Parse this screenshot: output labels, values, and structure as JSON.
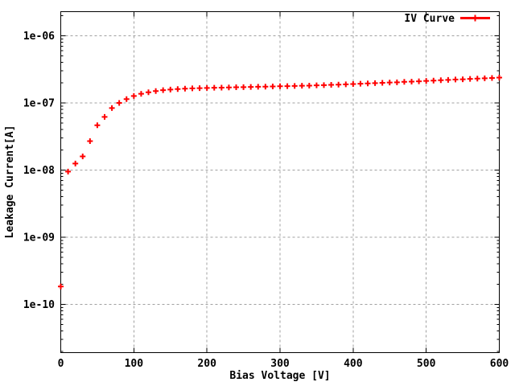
{
  "chart_data": {
    "type": "scatter",
    "title": "",
    "xlabel": "Bias Voltage [V]",
    "ylabel": "Leakage Current[A]",
    "legend_label": "IV Curve",
    "legend_position": "top-right-inside",
    "y_scale": "log",
    "xlim": [
      0,
      600
    ],
    "ylim_approx": [
      2e-11,
      2.2e-06
    ],
    "grid": true,
    "marker": "plus",
    "x_ticks": [
      0,
      100,
      200,
      300,
      400,
      500,
      600
    ],
    "y_tick_labels": [
      "1e-10",
      "1e-09",
      "1e-08",
      "1e-07",
      "1e-06"
    ],
    "colors": {
      "series": "#ff0000",
      "grid": "#a0a0a0",
      "axis": "#000000",
      "text": "#000000",
      "background": "#ffffff"
    },
    "series": [
      {
        "name": "IV Curve",
        "x": [
          0,
          10,
          20,
          30,
          40,
          50,
          60,
          70,
          80,
          90,
          100,
          110,
          120,
          130,
          140,
          150,
          160,
          170,
          180,
          190,
          200,
          210,
          220,
          230,
          240,
          250,
          260,
          270,
          280,
          290,
          300,
          310,
          320,
          330,
          340,
          350,
          360,
          370,
          380,
          390,
          400,
          410,
          420,
          430,
          440,
          450,
          460,
          470,
          480,
          490,
          500,
          510,
          520,
          530,
          540,
          550,
          560,
          570,
          580,
          590,
          600
        ],
        "y": [
          1.85e-10,
          9.5e-09,
          1.25e-08,
          1.6e-08,
          2.7e-08,
          4.65e-08,
          6.2e-08,
          8.4e-08,
          1e-07,
          1.14e-07,
          1.27e-07,
          1.37e-07,
          1.44e-07,
          1.5e-07,
          1.55e-07,
          1.58e-07,
          1.61e-07,
          1.63e-07,
          1.65e-07,
          1.66e-07,
          1.67e-07,
          1.68e-07,
          1.69e-07,
          1.7e-07,
          1.71e-07,
          1.72e-07,
          1.73e-07,
          1.74e-07,
          1.75e-07,
          1.76e-07,
          1.77e-07,
          1.78e-07,
          1.79e-07,
          1.8e-07,
          1.81e-07,
          1.83e-07,
          1.84e-07,
          1.86e-07,
          1.87e-07,
          1.89e-07,
          1.91e-07,
          1.93e-07,
          1.95e-07,
          1.97e-07,
          1.99e-07,
          2.01e-07,
          2.03e-07,
          2.06e-07,
          2.08e-07,
          2.1e-07,
          2.13e-07,
          2.15e-07,
          2.18e-07,
          2.2e-07,
          2.23e-07,
          2.25e-07,
          2.28e-07,
          2.3e-07,
          2.33e-07,
          2.35e-07,
          2.38e-07
        ]
      }
    ]
  }
}
